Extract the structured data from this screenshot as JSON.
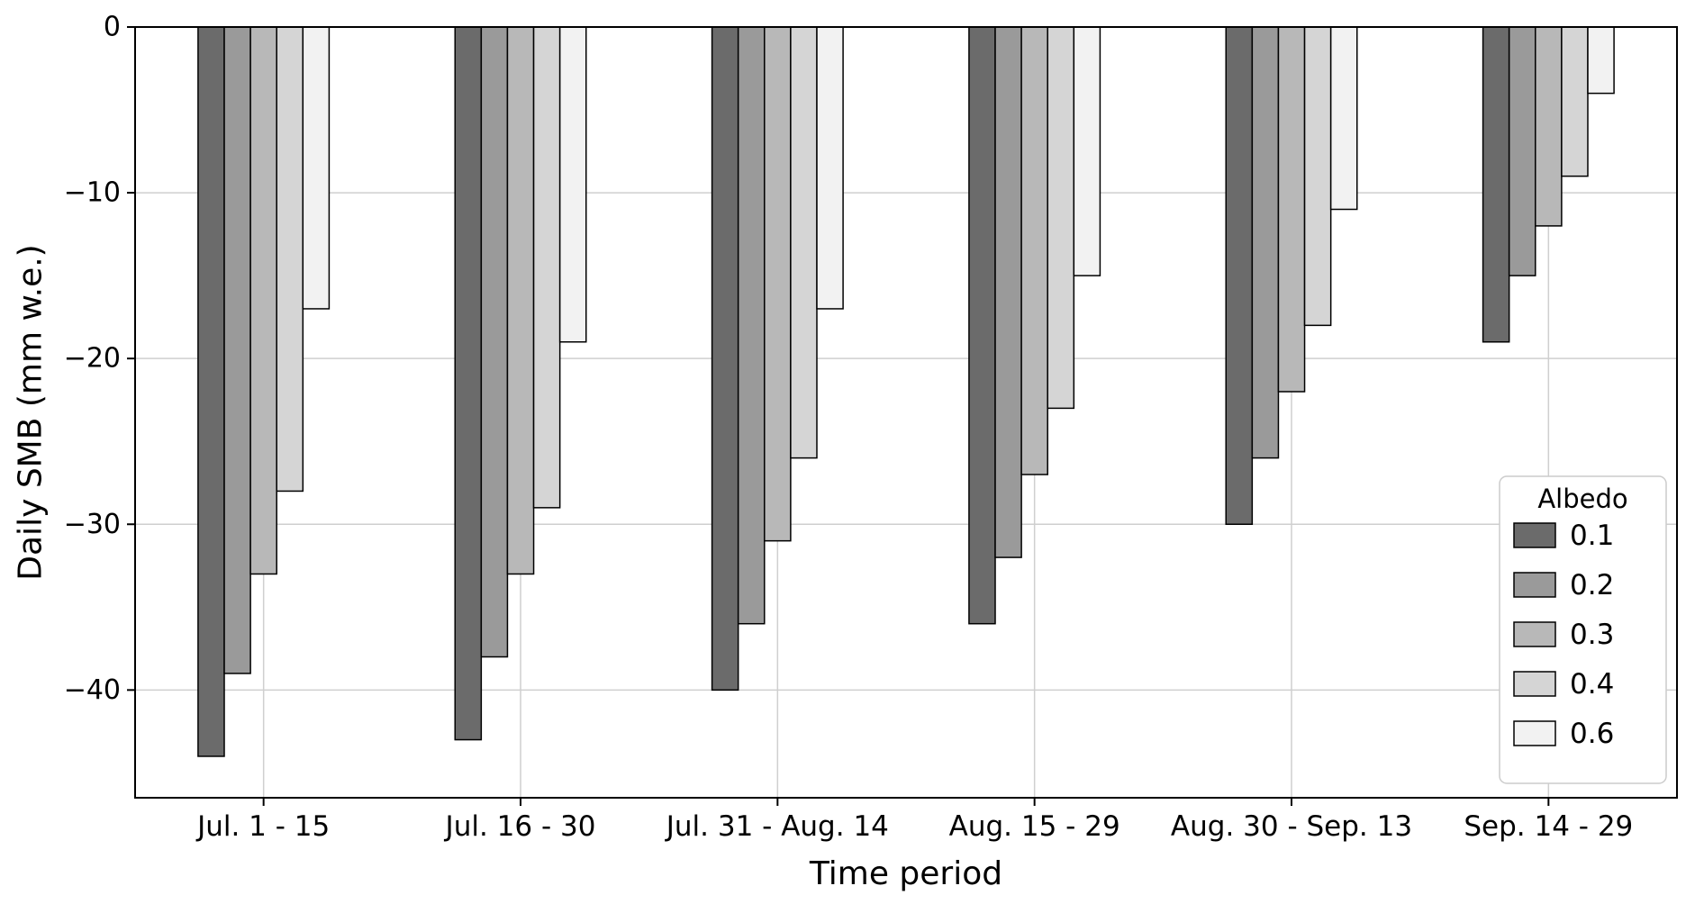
{
  "chart_data": {
    "type": "bar",
    "title": "",
    "xlabel": "Time period",
    "ylabel": "Daily SMB (mm w.e.)",
    "categories": [
      "Jul. 1 - 15",
      "Jul. 16 - 30",
      "Jul. 31 - Aug. 14",
      "Aug. 15 - 29",
      "Aug. 30 - Sep. 13",
      "Sep. 14 - 29"
    ],
    "series": [
      {
        "name": "0.1",
        "color": "#6b6b6b",
        "values": [
          -44,
          -43,
          -40,
          -36,
          -30,
          -19
        ]
      },
      {
        "name": "0.2",
        "color": "#9a9a9a",
        "values": [
          -39,
          -38,
          -36,
          -32,
          -26,
          -15
        ]
      },
      {
        "name": "0.3",
        "color": "#b8b8b8",
        "values": [
          -33,
          -33,
          -31,
          -27,
          -22,
          -12
        ]
      },
      {
        "name": "0.4",
        "color": "#d5d5d5",
        "values": [
          -28,
          -29,
          -26,
          -23,
          -18,
          -9
        ]
      },
      {
        "name": "0.6",
        "color": "#f2f2f2",
        "values": [
          -17,
          -19,
          -17,
          -15,
          -11,
          -4
        ]
      }
    ],
    "ylim": [
      -46.5,
      0
    ],
    "yticks": [
      0,
      -10,
      -20,
      -30,
      -40
    ],
    "ytick_labels": [
      "0",
      "−10",
      "−20",
      "−30",
      "−40"
    ],
    "legend_title": "Albedo",
    "legend_position": "lower right",
    "grid": true,
    "background_color": "#ffffff",
    "grid_color": "#cfcfcf",
    "bar_edge_color": "#000000"
  }
}
